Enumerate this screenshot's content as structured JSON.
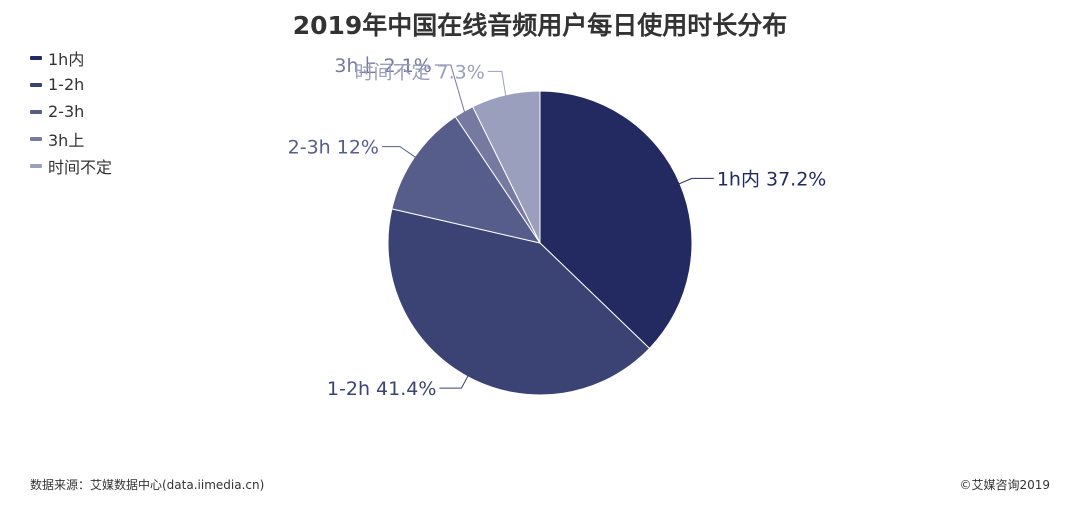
{
  "chart_data": {
    "type": "pie",
    "title": "2019年中国在线音频用户每日使用时长分布",
    "legend_position": "top-left",
    "slices": [
      {
        "name": "1h内",
        "value": 37.2,
        "label": "1h内 37.2%",
        "color": "#232a62"
      },
      {
        "name": "1-2h",
        "value": 41.4,
        "label": "1-2h 41.4%",
        "color": "#3b4274"
      },
      {
        "name": "2-3h",
        "value": 12,
        "label": "2-3h 12%",
        "color": "#575d8a"
      },
      {
        "name": "3h上",
        "value": 2.1,
        "label": "3h上 2.1%",
        "color": "#767aa0"
      },
      {
        "name": "时间不定",
        "value": 7.3,
        "label": "时间不定 7.3%",
        "color": "#9b9fbe"
      }
    ]
  },
  "footer": {
    "source": "数据来源：艾媒数据中心(data.iimedia.cn)",
    "copyright": "©艾媒咨询2019"
  }
}
